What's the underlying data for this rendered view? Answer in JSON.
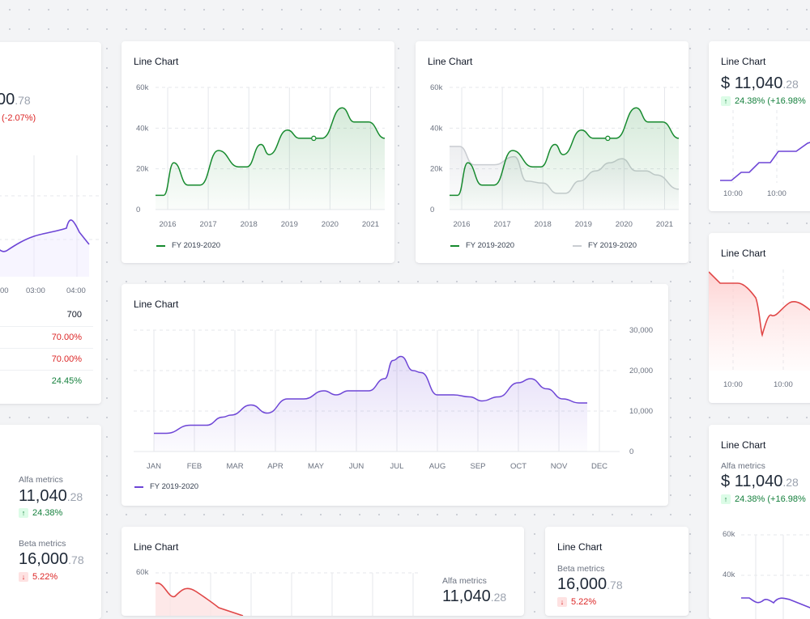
{
  "colors": {
    "green": "#168a2e",
    "purple": "#6d45d6",
    "red": "#e04747",
    "gray": "#c9ccd1"
  },
  "left_card": {
    "value_int": "00",
    "value_dec": ".78",
    "change": "(-2.07%)",
    "times": [
      "00",
      "03:00",
      "04:00"
    ],
    "rows": [
      {
        "text": "700",
        "tone": "neutral"
      },
      {
        "text": "70.00%",
        "tone": "down"
      },
      {
        "text": "70.00%",
        "tone": "down"
      },
      {
        "text": "24.45%",
        "tone": "up"
      }
    ]
  },
  "left_metrics": {
    "alfa": {
      "label": "Alfa metrics",
      "int": "11,040",
      "dec": ".28",
      "delta": "24.38%"
    },
    "beta": {
      "label": "Beta metrics",
      "int": "16,000",
      "dec": ".78",
      "delta": "5.22%"
    }
  },
  "chart_a": {
    "title": "Line Chart",
    "legend": "FY 2019-2020",
    "chart_data": {
      "type": "line",
      "x_labels": [
        "2016",
        "2017",
        "2018",
        "2019",
        "2020",
        "2021"
      ],
      "y_ticks": [
        "0",
        "20k",
        "40k",
        "60k"
      ],
      "ylim": [
        0,
        60000
      ],
      "series": [
        {
          "name": "FY 2019-2020",
          "x": [
            2015.7,
            2015.9,
            2016.15,
            2016.5,
            2016.8,
            2017.25,
            2017.75,
            2017.95,
            2018.3,
            2018.5,
            2018.95,
            2019.25,
            2019.55,
            2019.8,
            2020.3,
            2020.6,
            2020.95,
            2021.35
          ],
          "values": [
            7000,
            7000,
            23000,
            12000,
            12000,
            29000,
            21000,
            21000,
            32000,
            27000,
            39000,
            35000,
            35000,
            35000,
            50000,
            43000,
            43000,
            35000
          ]
        }
      ]
    }
  },
  "chart_b": {
    "title": "Line Chart",
    "legend1": "FY 2019-2020",
    "legend2": "FY 2019-2020",
    "chart_data": {
      "type": "line",
      "x_labels": [
        "2016",
        "2017",
        "2018",
        "2019",
        "2020",
        "2021"
      ],
      "y_ticks": [
        "0",
        "20k",
        "40k",
        "60k"
      ],
      "ylim": [
        0,
        60000
      ],
      "series": [
        {
          "name": "FY 2019-2020",
          "x": [
            2015.7,
            2015.9,
            2016.15,
            2016.5,
            2016.8,
            2017.25,
            2017.75,
            2017.95,
            2018.3,
            2018.5,
            2018.95,
            2019.25,
            2019.55,
            2019.8,
            2020.3,
            2020.6,
            2020.95,
            2021.35
          ],
          "values": [
            7000,
            7000,
            23000,
            12000,
            12000,
            29000,
            21000,
            21000,
            32000,
            27000,
            39000,
            35000,
            35000,
            35000,
            50000,
            43000,
            43000,
            35000
          ]
        },
        {
          "name": "FY 2019-2020",
          "x": [
            2015.7,
            2015.95,
            2016.3,
            2016.8,
            2017.3,
            2017.6,
            2018.0,
            2018.35,
            2018.55,
            2018.9,
            2019.3,
            2019.65,
            2019.95,
            2020.3,
            2020.55,
            2020.8,
            2021.35
          ],
          "values": [
            31000,
            31000,
            22000,
            22000,
            26000,
            14000,
            13000,
            8000,
            8000,
            14000,
            19000,
            23000,
            25000,
            19000,
            19000,
            17000,
            10000
          ]
        }
      ]
    }
  },
  "chart_main": {
    "title": "Line Chart",
    "legend": "FY 2019-2020",
    "chart_data": {
      "type": "line",
      "x_labels": [
        "JAN",
        "FEB",
        "MAR",
        "APR",
        "MAY",
        "JUN",
        "JUL",
        "AUG",
        "SEP",
        "OCT",
        "NOV",
        "DEC"
      ],
      "y_ticks": [
        "0",
        "10,000",
        "20,000",
        "30,000"
      ],
      "ylim": [
        0,
        30000
      ],
      "series": [
        {
          "name": "FY 2019-2020",
          "x": [
            0.5,
            0.8,
            1.4,
            1.8,
            2.2,
            2.4,
            2.9,
            3.3,
            3.8,
            4.2,
            4.7,
            5.0,
            5.3,
            5.8,
            6.2,
            6.4,
            6.6,
            6.9,
            7.1,
            7.5,
            7.9,
            8.3,
            8.6,
            9.0,
            9.5,
            9.8,
            10.2,
            10.6,
            11.0,
            11.2
          ],
          "values": [
            4500,
            4500,
            6500,
            6500,
            8500,
            9000,
            11500,
            9500,
            13000,
            13000,
            15000,
            14000,
            15000,
            15000,
            18000,
            22500,
            23500,
            20000,
            19500,
            14000,
            14000,
            13500,
            12500,
            13500,
            17000,
            18000,
            15500,
            13000,
            12000,
            12000
          ]
        }
      ]
    }
  },
  "chart_bottom": {
    "title": "Line Chart",
    "y_tick": "60k",
    "side_label": "Alfa metrics",
    "side_int": "11,040",
    "side_dec": ".28"
  },
  "beta_card": {
    "title": "Line Chart",
    "label": "Beta metrics",
    "int": "16,000",
    "dec": ".78",
    "delta": "5.22%"
  },
  "right_top": {
    "title": "Line Chart",
    "currency": "$ ",
    "int": "11,040",
    "dec": ".28",
    "delta": "24.38% (+16.98%",
    "times": [
      "10:00",
      "10:00"
    ]
  },
  "right_mid": {
    "title": "Line Chart",
    "times": [
      "10:00",
      "10:00"
    ]
  },
  "right_bottom": {
    "title": "Line Chart",
    "label": "Alfa metrics",
    "currency": "$ ",
    "int": "11,040",
    "dec": ".28",
    "delta": "24.38% (+16.98%",
    "y_ticks": [
      "60k",
      "40k"
    ]
  }
}
